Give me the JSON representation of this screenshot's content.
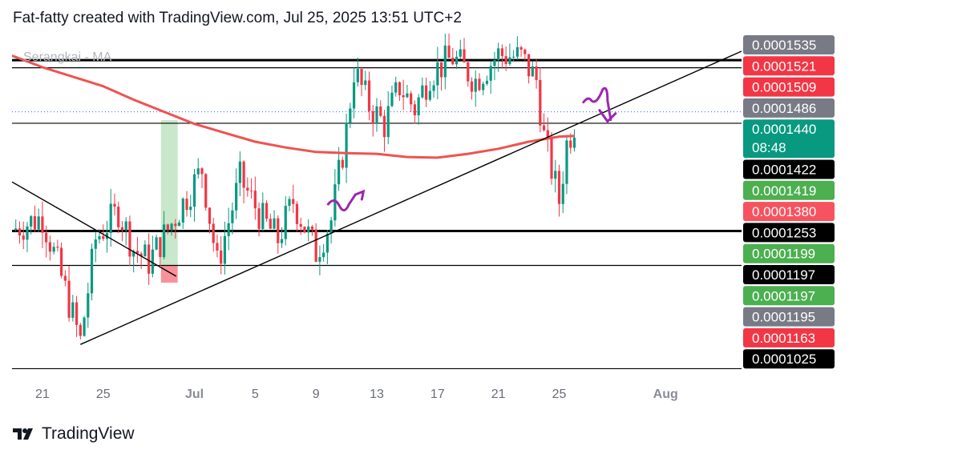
{
  "header": {
    "caption": "Fat-fatty created with TradingView.com, Jul 25, 2025 13:51 UTC+2"
  },
  "footer": {
    "brand": "TradingView",
    "logo_icon": "tradingview-logo-icon"
  },
  "chart_data": {
    "type": "candlestick",
    "indicator_label": "Serangkai - MA",
    "colors": {
      "up": "#089981",
      "down": "#f23645",
      "ma": "#ef5350",
      "trendline": "#000000",
      "annotation": "#9c27b0",
      "ref_line": "#2962ff"
    },
    "x_ticks": [
      {
        "label": "21",
        "day": 0,
        "bold": false
      },
      {
        "label": "25",
        "day": 4,
        "bold": false
      },
      {
        "label": "Jul",
        "day": 10,
        "bold": true
      },
      {
        "label": "5",
        "day": 14,
        "bold": false
      },
      {
        "label": "9",
        "day": 18,
        "bold": false
      },
      {
        "label": "13",
        "day": 22,
        "bold": false
      },
      {
        "label": "17",
        "day": 26,
        "bold": false
      },
      {
        "label": "21",
        "day": 30,
        "bold": false
      },
      {
        "label": "25",
        "day": 34,
        "bold": false
      },
      {
        "label": "Aug",
        "day": 41,
        "bold": true
      }
    ],
    "price_labels": [
      {
        "value": "0.0001535",
        "bg": "#787b86",
        "fg": "#ffffff"
      },
      {
        "value": "0.0001521",
        "bg": "#f23645",
        "fg": "#ffffff"
      },
      {
        "value": "0.0001509",
        "bg": "#f23645",
        "fg": "#ffffff"
      },
      {
        "value": "0.0001486",
        "bg": "#787b86",
        "fg": "#ffffff"
      },
      {
        "value": "0.0001440",
        "sub": "08:48",
        "bg": "#089981",
        "fg": "#ffffff"
      },
      {
        "value": "0.0001422",
        "bg": "#000000",
        "fg": "#ffffff"
      },
      {
        "value": "0.0001419",
        "bg": "#4caf50",
        "fg": "#ffffff"
      },
      {
        "value": "0.0001380",
        "bg": "#f7525f",
        "fg": "#ffffff"
      },
      {
        "value": "0.0001253",
        "bg": "#000000",
        "fg": "#ffffff"
      },
      {
        "value": "0.0001199",
        "bg": "#4caf50",
        "fg": "#ffffff"
      },
      {
        "value": "0.0001197",
        "bg": "#000000",
        "fg": "#ffffff"
      },
      {
        "value": "0.0001197",
        "bg": "#4caf50",
        "fg": "#ffffff"
      },
      {
        "value": "0.0001195",
        "bg": "#787b86",
        "fg": "#ffffff"
      },
      {
        "value": "0.0001163",
        "bg": "#f23645",
        "fg": "#ffffff"
      },
      {
        "value": "0.0001025",
        "bg": "#000000",
        "fg": "#ffffff"
      }
    ],
    "y_range": [
      0.0001025,
      0.0001545
    ],
    "x_range_days": [
      -2,
      46
    ],
    "horizontal_lines": [
      {
        "price": 0.0001521,
        "weight": 3
      },
      {
        "price": 0.0001509,
        "weight": 1.2
      },
      {
        "price": 0.0001422,
        "weight": 1.2
      },
      {
        "price": 0.0001253,
        "weight": 3
      },
      {
        "price": 0.0001199,
        "weight": 1.2
      },
      {
        "price": 0.0001037,
        "weight": 1.2
      }
    ],
    "current_price": 0.000144,
    "trendlines": [
      {
        "from": {
          "day": 2.5,
          "price": 0.0001075
        },
        "to": {
          "day": 46,
          "price": 0.0001535
        }
      },
      {
        "from": {
          "day": -2,
          "price": 0.000133
        },
        "to": {
          "day": 8.8,
          "price": 0.0001182
        }
      }
    ],
    "ma_points": [
      [
        -2,
        0.0001528
      ],
      [
        0,
        0.000151
      ],
      [
        2,
        0.0001495
      ],
      [
        4,
        0.000148
      ],
      [
        6,
        0.0001459
      ],
      [
        8,
        0.000144
      ],
      [
        10,
        0.0001421
      ],
      [
        12,
        0.0001407
      ],
      [
        14,
        0.0001393
      ],
      [
        16,
        0.0001384
      ],
      [
        18,
        0.0001377
      ],
      [
        20,
        0.0001375
      ],
      [
        22,
        0.0001374
      ],
      [
        24,
        0.0001369
      ],
      [
        26,
        0.0001368
      ],
      [
        28,
        0.0001374
      ],
      [
        30,
        0.0001382
      ],
      [
        32,
        0.0001393
      ],
      [
        34,
        0.0001401
      ],
      [
        35,
        0.0001402
      ]
    ],
    "candles_keypoints": [
      [
        -2,
        0.0001255
      ],
      [
        0,
        0.0001275
      ],
      [
        1,
        0.00012
      ],
      [
        2.5,
        0.000108
      ],
      [
        3.5,
        0.000124
      ],
      [
        5,
        0.0001285
      ],
      [
        6,
        0.0001225
      ],
      [
        7,
        0.0001205
      ],
      [
        8.5,
        0.0001265
      ],
      [
        10.5,
        0.000135
      ],
      [
        11.5,
        0.00012
      ],
      [
        13,
        0.0001335
      ],
      [
        14.5,
        0.000127
      ],
      [
        15.5,
        0.000124
      ],
      [
        16.5,
        0.00013
      ],
      [
        18,
        0.000122
      ],
      [
        19,
        0.000127
      ],
      [
        20,
        0.000141
      ],
      [
        20.5,
        0.0001505
      ],
      [
        21.5,
        0.000145
      ],
      [
        22.5,
        0.000142
      ],
      [
        23.5,
        0.000148
      ],
      [
        24.5,
        0.0001445
      ],
      [
        25.5,
        0.00015
      ],
      [
        27,
        0.0001525
      ],
      [
        28.5,
        0.000149
      ],
      [
        30,
        0.000153
      ],
      [
        31.5,
        0.0001525
      ],
      [
        32.5,
        0.000149
      ],
      [
        33,
        0.00014
      ],
      [
        34,
        0.00013
      ],
      [
        34.5,
        0.000139
      ],
      [
        35,
        0.0001422
      ],
      [
        35.2,
        0.000144
      ]
    ],
    "zones": [
      {
        "color": "#4caf50",
        "opacity": 0.3,
        "day_from": 7.8,
        "day_to": 8.9,
        "price_top": 0.0001427,
        "price_bottom": 0.0001199
      },
      {
        "color": "#f23645",
        "opacity": 0.55,
        "day_from": 7.8,
        "day_to": 8.9,
        "price_top": 0.0001199,
        "price_bottom": 0.0001172
      }
    ]
  }
}
